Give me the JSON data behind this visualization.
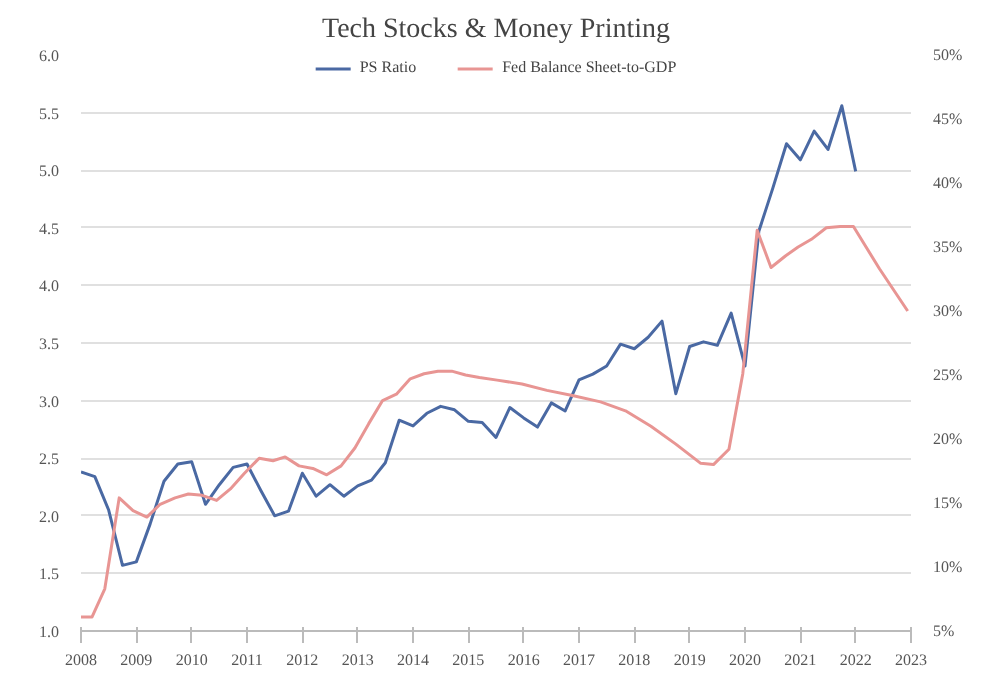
{
  "chart_data": {
    "type": "line",
    "title": "Tech Stocks & Money Printing",
    "legend": "top",
    "grid": "y",
    "line_style": "solid",
    "marker": "none",
    "xlim": [
      2008,
      2023
    ],
    "xticks": [
      2008,
      2009,
      2010,
      2011,
      2012,
      2013,
      2014,
      2015,
      2016,
      2017,
      2018,
      2019,
      2020,
      2021,
      2022,
      2023
    ],
    "ylim": [
      1,
      6
    ],
    "yticks": [
      {
        "value": 1,
        "label": "1.0"
      },
      {
        "value": 1.5,
        "label": "1.5"
      },
      {
        "value": 2,
        "label": "2.0"
      },
      {
        "value": 2.5,
        "label": "2.5"
      },
      {
        "value": 3,
        "label": "3.0"
      },
      {
        "value": 3.5,
        "label": "3.5"
      },
      {
        "value": 4,
        "label": "4.0"
      },
      {
        "value": 4.5,
        "label": "4.5"
      },
      {
        "value": 5,
        "label": "5.0"
      },
      {
        "value": 5.5,
        "label": "5.5"
      },
      {
        "value": 6,
        "label": "6.0"
      }
    ],
    "y2lim": [
      5,
      50
    ],
    "y2ticks": [
      {
        "value": 5,
        "label": "5%"
      },
      {
        "value": 10,
        "label": "10%"
      },
      {
        "value": 15,
        "label": "15%"
      },
      {
        "value": 20,
        "label": "20%"
      },
      {
        "value": 25,
        "label": "25%"
      },
      {
        "value": 30,
        "label": "30%"
      },
      {
        "value": 35,
        "label": "35%"
      },
      {
        "value": 40,
        "label": "40%"
      },
      {
        "value": 45,
        "label": "45%"
      },
      {
        "value": 50,
        "label": "50%"
      }
    ],
    "series": [
      {
        "name": "PS Ratio",
        "color": "#4a69a3",
        "x": [
          2008,
          2008.25,
          2008.5,
          2008.75,
          2009,
          2009.25,
          2009.5,
          2009.75,
          2010,
          2010.25,
          2010.5,
          2010.75,
          2011,
          2011.25,
          2011.5,
          2011.75,
          2012,
          2012.25,
          2012.5,
          2012.75,
          2013,
          2013.25,
          2013.5,
          2013.75,
          2014,
          2014.25,
          2014.5,
          2014.75,
          2015,
          2015.25,
          2015.5,
          2015.75,
          2016,
          2016.25,
          2016.5,
          2016.75,
          2017,
          2017.25,
          2017.5,
          2017.75,
          2018,
          2018.25,
          2018.5,
          2018.75,
          2019,
          2019.25,
          2019.5,
          2019.75,
          2020,
          2020.25,
          2020.5,
          2020.75,
          2021,
          2021.25,
          2021.5,
          2021.75,
          2022
        ],
        "values": [
          2.38,
          2.34,
          2.05,
          1.57,
          1.6,
          1.93,
          2.3,
          2.45,
          2.47,
          2.1,
          2.27,
          2.42,
          2.45,
          2.22,
          2.0,
          2.04,
          2.37,
          2.17,
          2.27,
          2.17,
          2.26,
          2.31,
          2.46,
          2.83,
          2.78,
          2.89,
          2.95,
          2.92,
          2.82,
          2.81,
          2.68,
          2.94,
          2.85,
          2.77,
          2.98,
          2.91,
          3.18,
          3.23,
          3.3,
          3.49,
          3.45,
          3.55,
          3.69,
          3.06,
          3.47,
          3.51,
          3.48,
          3.76,
          3.3,
          4.47,
          4.84,
          5.23,
          5.09,
          5.34,
          5.18,
          5.56,
          4.99
        ]
      },
      {
        "name": "Fed Balance Sheet-to-GDP",
        "color": "#e89593",
        "axis": "y2",
        "x": [
          2008,
          2008.2,
          2008.43,
          2008.69,
          2008.94,
          2009.19,
          2009.43,
          2009.7,
          2009.94,
          2010.19,
          2010.45,
          2010.7,
          2010.95,
          2011.22,
          2011.47,
          2011.69,
          2011.94,
          2012.19,
          2012.44,
          2012.7,
          2012.95,
          2013.2,
          2013.45,
          2013.7,
          2013.95,
          2014.2,
          2014.45,
          2014.7,
          2014.95,
          2015.2,
          2015.52,
          2015.97,
          2016.42,
          2016.88,
          2017.39,
          2017.84,
          2018.3,
          2018.75,
          2019.2,
          2019.43,
          2019.71,
          2019.96,
          2020.22,
          2020.47,
          2020.73,
          2020.96,
          2021.2,
          2021.47,
          2021.72,
          2021.96,
          2022.43,
          2022.94
        ],
        "values": [
          6.1,
          6.1,
          8.3,
          15.4,
          14.4,
          13.9,
          14.9,
          15.4,
          15.7,
          15.6,
          15.2,
          16.1,
          17.3,
          18.5,
          18.3,
          18.6,
          17.9,
          17.7,
          17.2,
          17.9,
          19.3,
          21.2,
          23.0,
          23.5,
          24.7,
          25.1,
          25.3,
          25.3,
          25.0,
          24.8,
          24.6,
          24.3,
          23.8,
          23.4,
          22.9,
          22.2,
          21.0,
          19.6,
          18.1,
          18.0,
          19.2,
          25.1,
          36.3,
          33.4,
          34.3,
          35.0,
          35.6,
          36.5,
          36.6,
          36.6,
          33.3,
          30.0
        ]
      }
    ]
  }
}
